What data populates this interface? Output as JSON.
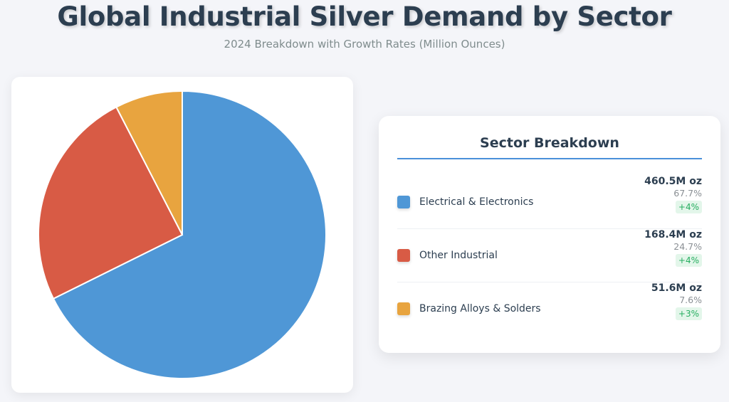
{
  "chart_data": {
    "type": "pie",
    "title": "Global Industrial Silver Demand by Sector",
    "subtitle": "2024 Breakdown with Growth Rates (Million Ounces)",
    "legend_title": "Sector Breakdown",
    "legend_placement": "right",
    "start_angle": "top",
    "direction": "clockwise",
    "slices": [
      {
        "label": "Electrical & Electronics",
        "value": 460.5,
        "value_label": "460.5M oz",
        "percent": 67.7,
        "percent_label": "67.7%",
        "growth": "+4%",
        "color": "#4f97d6"
      },
      {
        "label": "Other Industrial",
        "value": 168.4,
        "value_label": "168.4M oz",
        "percent": 24.7,
        "percent_label": "24.7%",
        "growth": "+4%",
        "color": "#d85b45"
      },
      {
        "label": "Brazing Alloys & Solders",
        "value": 51.6,
        "value_label": "51.6M oz",
        "percent": 7.6,
        "percent_label": "7.6%",
        "growth": "+3%",
        "color": "#e8a43f"
      }
    ]
  }
}
